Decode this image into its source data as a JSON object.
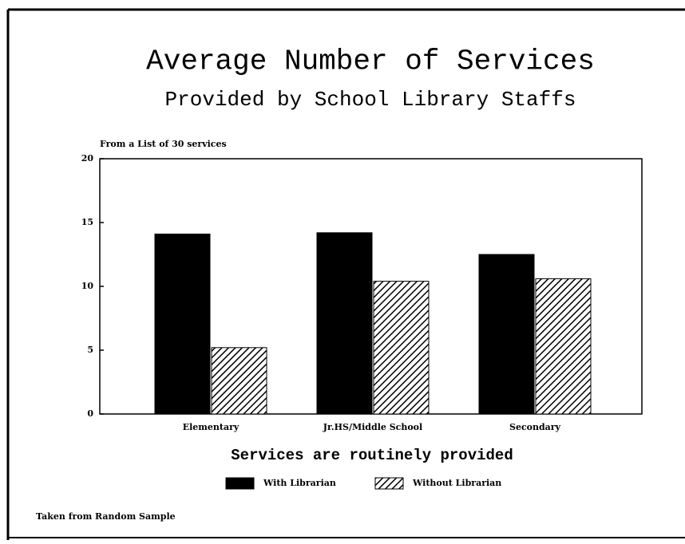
{
  "chart_data": {
    "type": "bar",
    "title": "Average Number of Services",
    "subtitle": "Provided by School Library Staffs",
    "annotation": "From a List of 30 services",
    "xlabel": "Services are routinely provided",
    "footnote": "Taken from Random Sample",
    "categories": [
      "Elementary",
      "Jr.HS/Middle School",
      "Secondary"
    ],
    "series": [
      {
        "name": "With Librarian",
        "color": "#000000",
        "values": [
          14.1,
          14.2,
          12.5
        ]
      },
      {
        "name": "Without Librarian",
        "color": "#000000",
        "pattern": "hatch",
        "values": [
          5.2,
          10.4,
          10.6
        ]
      }
    ],
    "ylim": [
      0,
      20
    ],
    "yticks": [
      0,
      5,
      10,
      15,
      20
    ],
    "legend": "bottom"
  }
}
